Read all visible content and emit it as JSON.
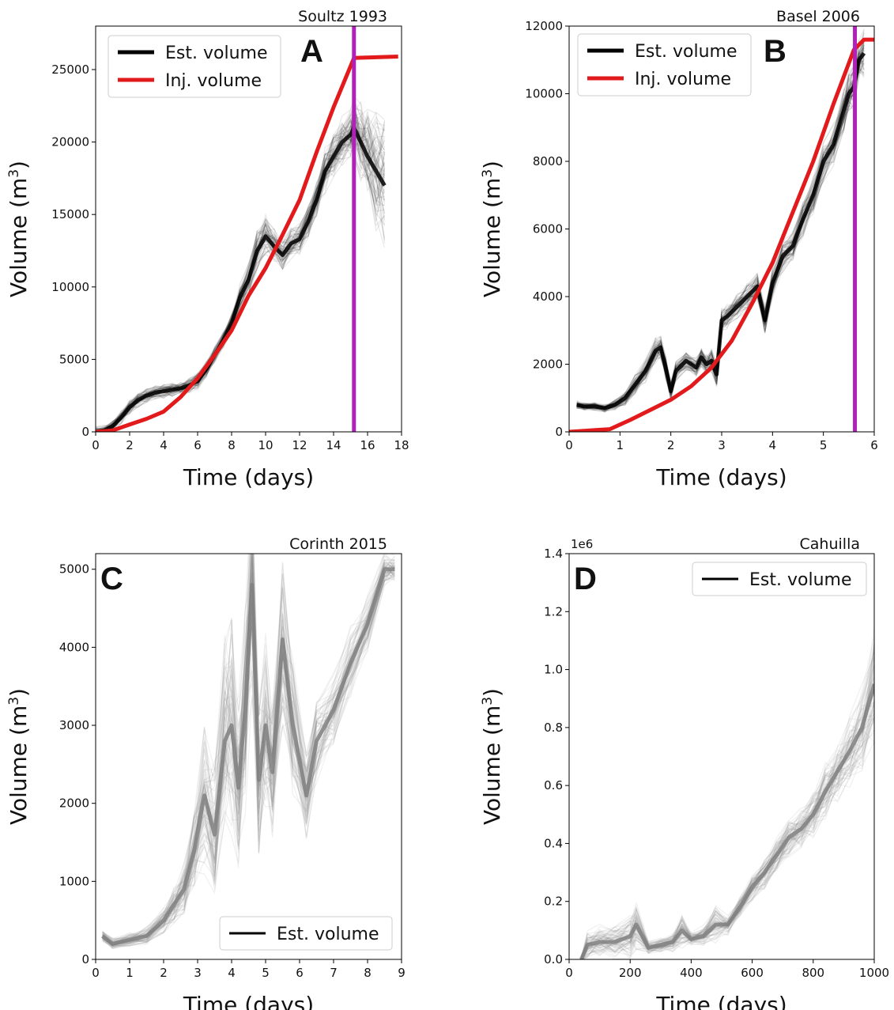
{
  "colors": {
    "estimate_black": "#000000",
    "estimate_gray": "#808080",
    "injected": "#e31a1c",
    "shut_in": "#b120b8"
  },
  "chart_data": [
    {
      "panel": "A",
      "type": "line",
      "title": "Soultz 1993",
      "xlabel": "Time (days)",
      "ylabel": "Volume (m³)",
      "xlim": [
        0,
        18
      ],
      "ylim": [
        0,
        28000
      ],
      "xticks": [
        0,
        2,
        4,
        6,
        8,
        10,
        12,
        14,
        16,
        18
      ],
      "yticks": [
        0,
        5000,
        10000,
        15000,
        20000,
        25000
      ],
      "legend": {
        "position": "upper-left",
        "entries": [
          "Est. volume",
          "Inj. volume"
        ]
      },
      "shut_in_day": 15.2,
      "series": [
        {
          "name": "Est. volume",
          "kind": "ensemble",
          "color": "#000000",
          "x": [
            0,
            0.5,
            1,
            1.5,
            2,
            2.5,
            3,
            3.5,
            4,
            4.5,
            5,
            5.5,
            6,
            6.5,
            7,
            7.5,
            8,
            8.5,
            9,
            9.5,
            10,
            10.5,
            11,
            11.5,
            12,
            12.5,
            13,
            13.5,
            14,
            14.5,
            15,
            15.2,
            15.6,
            16,
            16.5,
            17
          ],
          "y": [
            0,
            100,
            400,
            1000,
            1700,
            2200,
            2500,
            2700,
            2800,
            2900,
            3000,
            3200,
            3500,
            4300,
            5300,
            6300,
            7500,
            9300,
            10500,
            12500,
            13500,
            12800,
            12200,
            13000,
            13300,
            14500,
            16000,
            18000,
            19000,
            20000,
            20500,
            21000,
            20000,
            19000,
            18000,
            17000
          ],
          "spread": [
            300,
            300,
            350,
            350,
            400,
            400,
            400,
            400,
            400,
            400,
            400,
            400,
            500,
            500,
            500,
            500,
            600,
            800,
            900,
            1200,
            1200,
            1000,
            900,
            900,
            900,
            1000,
            1100,
            1300,
            1300,
            1400,
            1500,
            1800,
            2200,
            2800,
            3400,
            4000
          ]
        },
        {
          "name": "Inj. volume",
          "kind": "line",
          "color": "#e31a1c",
          "x": [
            0,
            1,
            2,
            3,
            4,
            5,
            6,
            7,
            8,
            9,
            10,
            11,
            12,
            13,
            14,
            15.2,
            17.8
          ],
          "y": [
            0,
            100,
            500,
            900,
            1400,
            2400,
            3700,
            5300,
            7000,
            9400,
            11300,
            13600,
            16000,
            19300,
            22400,
            25800,
            25900
          ]
        }
      ]
    },
    {
      "panel": "B",
      "type": "line",
      "title": "Basel 2006",
      "xlabel": "Time (days)",
      "ylabel": "Volume (m³)",
      "xlim": [
        0,
        6
      ],
      "ylim": [
        0,
        12000
      ],
      "xticks": [
        0,
        1,
        2,
        3,
        4,
        5,
        6
      ],
      "yticks": [
        0,
        2000,
        4000,
        6000,
        8000,
        10000,
        12000
      ],
      "legend": {
        "position": "upper-left",
        "entries": [
          "Est. volume",
          "Inj. volume"
        ]
      },
      "shut_in_day": 5.62,
      "series": [
        {
          "name": "Est. volume",
          "kind": "ensemble",
          "color": "#000000",
          "x": [
            0.15,
            0.3,
            0.5,
            0.7,
            0.9,
            1.1,
            1.3,
            1.5,
            1.7,
            1.8,
            1.9,
            2.0,
            2.1,
            2.3,
            2.5,
            2.6,
            2.7,
            2.8,
            2.9,
            3.0,
            3.1,
            3.3,
            3.5,
            3.7,
            3.85,
            4.0,
            4.2,
            4.4,
            4.6,
            4.8,
            5.0,
            5.2,
            5.4,
            5.5,
            5.6,
            5.7,
            5.8
          ],
          "y": [
            800,
            750,
            750,
            700,
            800,
            1000,
            1400,
            1800,
            2400,
            2500,
            1900,
            1200,
            1800,
            2100,
            1900,
            2200,
            2000,
            2100,
            1700,
            3300,
            3400,
            3700,
            4000,
            4300,
            3300,
            4400,
            5200,
            5500,
            6300,
            7000,
            8000,
            8500,
            9500,
            10000,
            10200,
            11000,
            11200
          ],
          "spread": [
            100,
            100,
            100,
            100,
            150,
            200,
            250,
            300,
            300,
            300,
            300,
            250,
            250,
            250,
            250,
            250,
            250,
            300,
            300,
            300,
            300,
            300,
            350,
            350,
            350,
            400,
            400,
            400,
            450,
            450,
            500,
            500,
            550,
            550,
            600,
            600,
            600
          ]
        },
        {
          "name": "Inj. volume",
          "kind": "line",
          "color": "#e31a1c",
          "x": [
            0,
            0.8,
            1.2,
            1.6,
            2.0,
            2.4,
            2.8,
            3.2,
            3.6,
            4.0,
            4.4,
            4.8,
            5.2,
            5.6,
            5.8,
            6.0
          ],
          "y": [
            0,
            80,
            350,
            650,
            950,
            1350,
            1900,
            2700,
            3800,
            5000,
            6500,
            8000,
            9700,
            11300,
            11600,
            11600
          ]
        }
      ]
    },
    {
      "panel": "C",
      "type": "line",
      "title": "Corinth 2015",
      "xlabel": "Time (days)",
      "ylabel": "Volume (m³)",
      "xlim": [
        0,
        9
      ],
      "ylim": [
        0,
        5200
      ],
      "xticks": [
        0,
        1,
        2,
        3,
        4,
        5,
        6,
        7,
        8,
        9
      ],
      "yticks": [
        0,
        1000,
        2000,
        3000,
        4000,
        5000
      ],
      "legend": {
        "position": "lower-right",
        "entries": [
          "Est. volume"
        ]
      },
      "series": [
        {
          "name": "Est. volume",
          "kind": "ensemble",
          "color": "#808080",
          "x": [
            0.2,
            0.5,
            1.0,
            1.5,
            2.0,
            2.3,
            2.6,
            2.9,
            3.2,
            3.5,
            3.8,
            4.0,
            4.2,
            4.4,
            4.6,
            4.8,
            5.0,
            5.2,
            5.5,
            5.8,
            6.2,
            6.5,
            7.0,
            7.5,
            8.0,
            8.5,
            8.8
          ],
          "y": [
            300,
            200,
            250,
            300,
            500,
            700,
            900,
            1400,
            2100,
            1600,
            2800,
            3000,
            2200,
            3200,
            4800,
            2300,
            3000,
            2400,
            4100,
            3000,
            2100,
            2800,
            3200,
            3800,
            4300,
            5000,
            5000
          ],
          "spread": [
            60,
            60,
            80,
            100,
            150,
            200,
            300,
            500,
            800,
            800,
            1100,
            1200,
            1000,
            1100,
            1300,
            900,
            1000,
            800,
            1000,
            800,
            500,
            500,
            400,
            400,
            300,
            200,
            150
          ]
        }
      ]
    },
    {
      "panel": "D",
      "type": "line",
      "title": "Cahuilla",
      "xlabel": "Time (days)",
      "ylabel": "Volume (m³)",
      "y_exponent": "1e6",
      "xlim": [
        0,
        1000
      ],
      "ylim": [
        0,
        1.4
      ],
      "xticks": [
        0,
        200,
        400,
        600,
        800,
        1000
      ],
      "yticks": [
        0.0,
        0.2,
        0.4,
        0.6,
        0.8,
        1.0,
        1.2,
        1.4
      ],
      "legend": {
        "position": "upper-right",
        "entries": [
          "Est. volume"
        ]
      },
      "series": [
        {
          "name": "Est. volume",
          "kind": "ensemble",
          "color": "#808080",
          "x": [
            40,
            60,
            100,
            150,
            200,
            220,
            260,
            300,
            340,
            370,
            400,
            440,
            480,
            520,
            560,
            600,
            640,
            680,
            720,
            760,
            800,
            840,
            880,
            920,
            960,
            1000
          ],
          "y": [
            0.0,
            0.05,
            0.06,
            0.06,
            0.08,
            0.12,
            0.04,
            0.05,
            0.06,
            0.1,
            0.07,
            0.08,
            0.12,
            0.12,
            0.18,
            0.25,
            0.3,
            0.36,
            0.42,
            0.45,
            0.5,
            0.58,
            0.65,
            0.72,
            0.8,
            0.95
          ],
          "spread": [
            0.01,
            0.04,
            0.05,
            0.05,
            0.06,
            0.07,
            0.02,
            0.02,
            0.03,
            0.05,
            0.02,
            0.03,
            0.06,
            0.03,
            0.03,
            0.04,
            0.05,
            0.05,
            0.06,
            0.06,
            0.07,
            0.08,
            0.09,
            0.1,
            0.12,
            0.18
          ]
        }
      ]
    }
  ]
}
